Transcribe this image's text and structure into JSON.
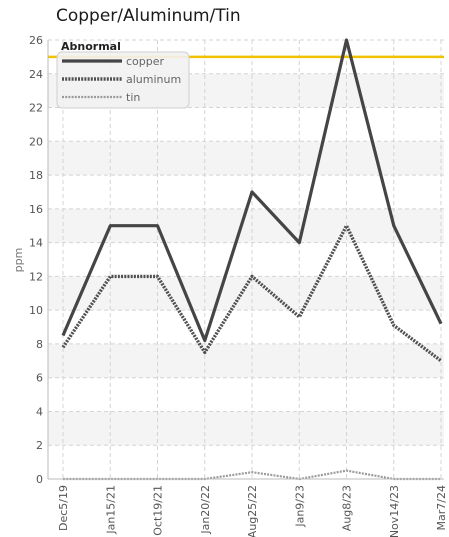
{
  "chart_data": {
    "type": "line",
    "title": "Copper/Aluminum/Tin",
    "ylabel": "ppm",
    "xlabel": "",
    "categories": [
      "Dec5/19",
      "Jan15/21",
      "Oct19/21",
      "Jan20/22",
      "Aug25/22",
      "Jan9/23",
      "Aug8/23",
      "Nov14/23",
      "Mar7/24"
    ],
    "ylim": [
      0,
      26
    ],
    "yticks": [
      0,
      2,
      4,
      6,
      8,
      10,
      12,
      14,
      16,
      18,
      20,
      22,
      24,
      26
    ],
    "grid": true,
    "legend_position": "top-left",
    "series": [
      {
        "name": "copper",
        "values": [
          8.5,
          15,
          15,
          8.2,
          17,
          14,
          26,
          15,
          9.2
        ],
        "color": "#454545",
        "style": "solid"
      },
      {
        "name": "aluminum",
        "values": [
          7.8,
          12,
          12,
          7.5,
          12,
          9.6,
          15,
          9.1,
          7
        ],
        "color": "#505050",
        "style": "dotted"
      },
      {
        "name": "tin",
        "values": [
          0,
          0,
          0,
          0,
          0.4,
          0,
          0.5,
          0,
          0
        ],
        "color": "#9a9a9a",
        "style": "dotted"
      }
    ],
    "threshold": {
      "label": "Abnormal",
      "value": 25,
      "color": "#f2c200"
    }
  }
}
